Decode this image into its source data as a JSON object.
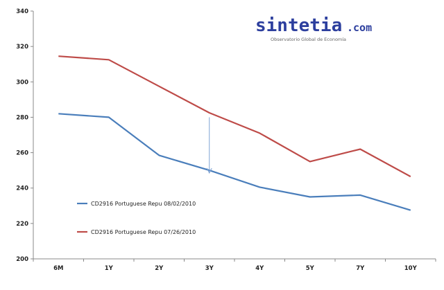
{
  "brand": {
    "name": "sintetia",
    "suffix": ".com",
    "tagline": "Observatorio Global de Economía",
    "color": "#2d3f9e"
  },
  "chart_data": {
    "type": "line",
    "categories": [
      "6M",
      "1Y",
      "2Y",
      "3Y",
      "4Y",
      "5Y",
      "7Y",
      "10Y"
    ],
    "ylim": [
      200,
      340
    ],
    "yticks": [
      200,
      220,
      240,
      260,
      280,
      300,
      320,
      340
    ],
    "grid": false,
    "legend_placement": "lower-left",
    "series": [
      {
        "name": "CD2916 Portuguese Repu 08/02/2010",
        "color": "#4a7ebb",
        "values": [
          282,
          280,
          258.5,
          250,
          240.5,
          235,
          236,
          227.5
        ]
      },
      {
        "name": "CD2916 Portuguese Repu 07/26/2010",
        "color": "#be4b48",
        "values": [
          314.5,
          312.5,
          297.5,
          282.5,
          271,
          255,
          262,
          246.5
        ]
      }
    ],
    "annotation": {
      "type": "arrow",
      "category": "3Y",
      "from": 280,
      "to": 248.5,
      "color": "#7fa3d4"
    }
  }
}
